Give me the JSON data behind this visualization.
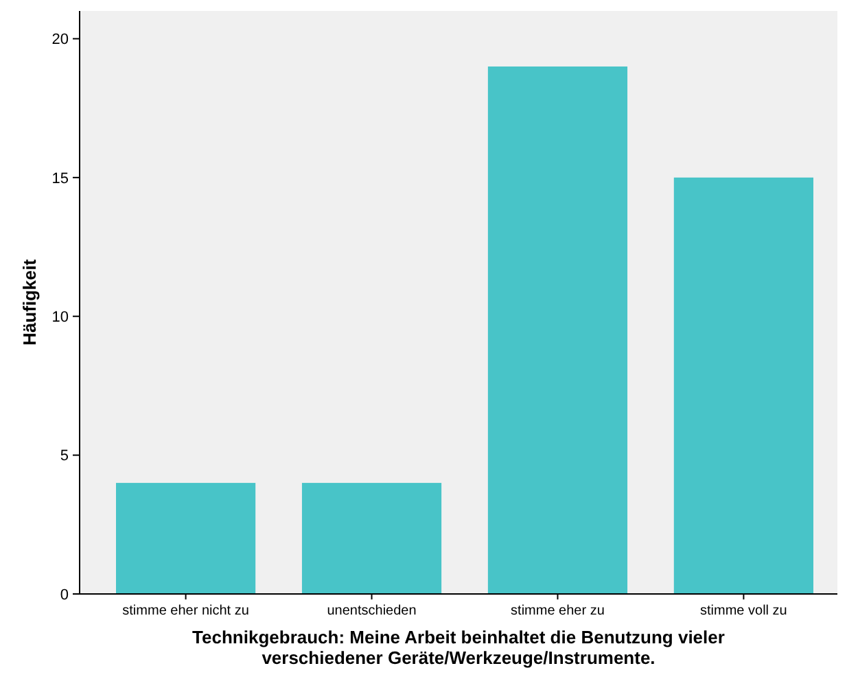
{
  "chart_data": {
    "type": "bar",
    "xlabel": "Technikgebrauch: Meine Arbeit beinhaltet die Benutzung vieler\nverschiedener Geräte/Werkzeuge/Instrumente.",
    "ylabel": "Häufigkeit",
    "categories": [
      "stimme eher nicht zu",
      "unentschieden",
      "stimme eher zu",
      "stimme voll zu"
    ],
    "values": [
      4,
      4,
      19,
      15
    ],
    "color": "#48c4c8",
    "ylim": [
      0,
      21
    ],
    "yticks": [
      0,
      5,
      10,
      15,
      20
    ],
    "grid": false
  }
}
